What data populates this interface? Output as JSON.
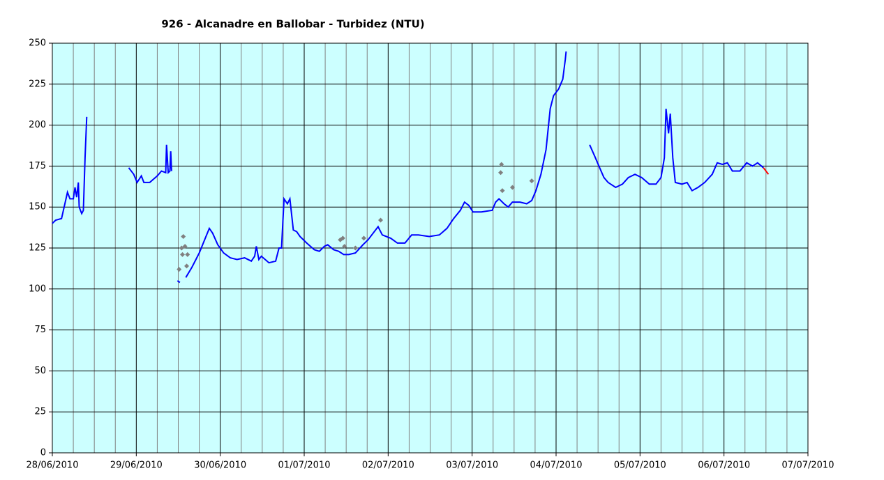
{
  "chart_data": {
    "type": "line",
    "title": "926 - Alcanadre en Ballobar - Turbidez (NTU)",
    "xlim": [
      0,
      9
    ],
    "xticks": [
      {
        "value": 0,
        "label": "28/06/2010"
      },
      {
        "value": 1,
        "label": "29/06/2010"
      },
      {
        "value": 2,
        "label": "30/06/2010"
      },
      {
        "value": 3,
        "label": "01/07/2010"
      },
      {
        "value": 4,
        "label": "02/07/2010"
      },
      {
        "value": 5,
        "label": "03/07/2010"
      },
      {
        "value": 6,
        "label": "04/07/2010"
      },
      {
        "value": 7,
        "label": "05/07/2010"
      },
      {
        "value": 8,
        "label": "06/07/2010"
      },
      {
        "value": 9,
        "label": "07/07/2010"
      }
    ],
    "xminorticks": [
      0.25,
      0.5,
      0.75,
      1.25,
      1.5,
      1.75,
      2.25,
      2.5,
      2.75,
      3.25,
      3.5,
      3.75,
      4.25,
      4.5,
      4.75,
      5.25,
      5.5,
      5.75,
      6.25,
      6.5,
      6.75,
      7.25,
      7.5,
      7.75,
      8.25,
      8.5,
      8.75
    ],
    "ylim": [
      0,
      250
    ],
    "yticks": [
      0,
      25,
      50,
      75,
      100,
      125,
      150,
      175,
      200,
      225,
      250
    ],
    "grid": true,
    "background": "#ccffff",
    "series": [
      {
        "type": "line",
        "color": "#0000ff",
        "x": [
          0,
          0.04,
          0.11,
          0.15,
          0.18,
          0.21,
          0.25,
          0.27,
          0.29,
          0.31,
          0.32,
          0.35,
          0.37,
          0.39,
          0.41,
          null,
          0.91,
          0.97,
          1.01,
          1.06,
          1.09,
          1.16,
          1.25,
          1.3,
          1.35,
          1.36,
          1.38,
          1.4,
          1.41,
          1.42,
          null,
          1.49,
          1.52,
          null,
          1.59,
          1.66,
          1.75,
          1.83,
          1.87,
          1.91,
          1.97,
          2.04,
          2.12,
          2.2,
          2.29,
          2.37,
          2.41,
          2.43,
          2.46,
          2.49,
          2.58,
          2.66,
          2.7,
          2.73,
          2.76,
          2.8,
          2.83,
          2.87,
          2.91,
          2.95,
          3.03,
          3.12,
          3.18,
          3.24,
          3.28,
          3.35,
          3.41,
          3.47,
          3.53,
          3.61,
          3.7,
          3.76,
          3.82,
          3.88,
          3.93,
          4.03,
          4.11,
          4.2,
          4.28,
          4.36,
          4.49,
          4.61,
          4.7,
          4.78,
          4.86,
          4.91,
          4.96,
          5.01,
          5.11,
          5.24,
          5.28,
          5.32,
          5.38,
          5.43,
          5.48,
          5.57,
          5.65,
          5.71,
          5.76,
          5.82,
          5.88,
          5.93,
          5.97,
          6.03,
          6.08,
          6.11,
          6.12,
          null,
          6.4,
          6.46,
          6.51,
          6.57,
          6.62,
          6.71,
          6.79,
          6.86,
          6.94,
          7.02,
          7.11,
          7.19,
          7.25,
          7.29,
          7.31,
          7.34,
          7.36,
          7.39,
          7.42,
          7.5,
          7.56,
          7.62,
          7.69,
          7.77,
          7.86,
          7.92,
          7.98,
          8.04,
          8.1,
          8.19,
          8.27,
          8.34,
          8.4,
          8.47
        ],
        "values": [
          140,
          142,
          143,
          152,
          159,
          155,
          155,
          162,
          156,
          165,
          150,
          146,
          148,
          180,
          205,
          null,
          174,
          170,
          165,
          169,
          165,
          165,
          169,
          172,
          171,
          188,
          171,
          172,
          184,
          172,
          null,
          105,
          104,
          null,
          107,
          113,
          122,
          132,
          137,
          134,
          127,
          122,
          119,
          118,
          119,
          117,
          120,
          126,
          118,
          120,
          116,
          117,
          125,
          125,
          155,
          152,
          155,
          136,
          135,
          132,
          128,
          124,
          123,
          126,
          127,
          124,
          123,
          121,
          121,
          122,
          127,
          130,
          134,
          138,
          133,
          131,
          128,
          128,
          133,
          133,
          132,
          133,
          137,
          143,
          148,
          153,
          151,
          147,
          147,
          148,
          153,
          155,
          152,
          150,
          153,
          153,
          152,
          154,
          160,
          170,
          185,
          210,
          218,
          222,
          228,
          240,
          245,
          null,
          188,
          181,
          175,
          168,
          165,
          162,
          164,
          168,
          170,
          168,
          164,
          164,
          168,
          180,
          210,
          195,
          207,
          180,
          165,
          164,
          165,
          160,
          162,
          165,
          170,
          177,
          176,
          177,
          172,
          172,
          177,
          175,
          177,
          174
        ]
      },
      {
        "type": "line",
        "color": "#ff0000",
        "x": [
          8.47,
          8.53
        ],
        "values": [
          174,
          170
        ]
      },
      {
        "type": "scatter",
        "color": "#808080",
        "x": [
          1.51,
          1.54,
          1.56,
          1.55,
          1.58,
          1.6,
          1.61,
          3.43,
          3.46,
          3.48,
          3.61,
          3.71,
          3.91,
          5.34,
          5.35,
          5.36,
          5.48,
          5.71
        ],
        "values": [
          112,
          125,
          132,
          121,
          126,
          114,
          121,
          130,
          131,
          126,
          125,
          131,
          142,
          171,
          176,
          160,
          162,
          166
        ]
      }
    ]
  }
}
